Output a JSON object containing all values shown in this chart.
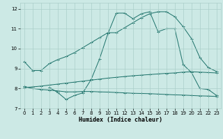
{
  "title": "",
  "xlabel": "Humidex (Indice chaleur)",
  "ylabel": "",
  "bg_color": "#cce9e5",
  "grid_color": "#aacfc9",
  "line_color": "#1a7068",
  "xlim": [
    -0.5,
    23.5
  ],
  "ylim": [
    7.0,
    12.3
  ],
  "xticks": [
    0,
    1,
    2,
    3,
    4,
    5,
    6,
    7,
    8,
    9,
    10,
    11,
    12,
    13,
    14,
    15,
    16,
    17,
    18,
    19,
    20,
    21,
    22,
    23
  ],
  "yticks": [
    7,
    8,
    9,
    10,
    11,
    12
  ],
  "line1_x": [
    0,
    1,
    2,
    3,
    4,
    5,
    6,
    7,
    8,
    9,
    10,
    11,
    12,
    13,
    14,
    15,
    16,
    17,
    18,
    19,
    20,
    21,
    22,
    23
  ],
  "line1_y": [
    9.35,
    8.9,
    8.9,
    9.25,
    9.45,
    9.6,
    9.8,
    10.05,
    10.3,
    10.55,
    10.8,
    10.8,
    11.05,
    11.3,
    11.55,
    11.75,
    11.85,
    11.85,
    11.6,
    11.1,
    10.5,
    9.55,
    9.05,
    8.85
  ],
  "line2_x": [
    0,
    1,
    2,
    3,
    4,
    5,
    6,
    7,
    8,
    9,
    10,
    11,
    12,
    13,
    14,
    15,
    16,
    17,
    18,
    19,
    20,
    21,
    22,
    23
  ],
  "line2_y": [
    8.1,
    8.0,
    7.95,
    7.92,
    7.88,
    7.83,
    7.83,
    7.85,
    7.85,
    7.83,
    7.82,
    7.8,
    7.78,
    7.76,
    7.75,
    7.74,
    7.72,
    7.7,
    7.68,
    7.67,
    7.65,
    7.63,
    7.62,
    7.6
  ],
  "line3_x": [
    0,
    1,
    2,
    3,
    4,
    5,
    6,
    7,
    8,
    9,
    10,
    11,
    12,
    13,
    14,
    15,
    16,
    17,
    18,
    19,
    20,
    21,
    22,
    23
  ],
  "line3_y": [
    8.05,
    8.08,
    8.12,
    8.17,
    8.22,
    8.27,
    8.32,
    8.37,
    8.42,
    8.47,
    8.52,
    8.56,
    8.6,
    8.64,
    8.67,
    8.7,
    8.73,
    8.76,
    8.78,
    8.82,
    8.84,
    8.82,
    8.8,
    8.78
  ],
  "line4_x": [
    3,
    4,
    5,
    6,
    7,
    8,
    9,
    10,
    11,
    12,
    13,
    14,
    15,
    16,
    17,
    18,
    19,
    20,
    21,
    22,
    23
  ],
  "line4_y": [
    8.05,
    7.8,
    7.45,
    7.65,
    7.78,
    8.45,
    9.48,
    10.75,
    11.78,
    11.78,
    11.5,
    11.75,
    11.85,
    10.85,
    11.0,
    11.0,
    9.2,
    8.8,
    8.0,
    7.95,
    7.65
  ]
}
